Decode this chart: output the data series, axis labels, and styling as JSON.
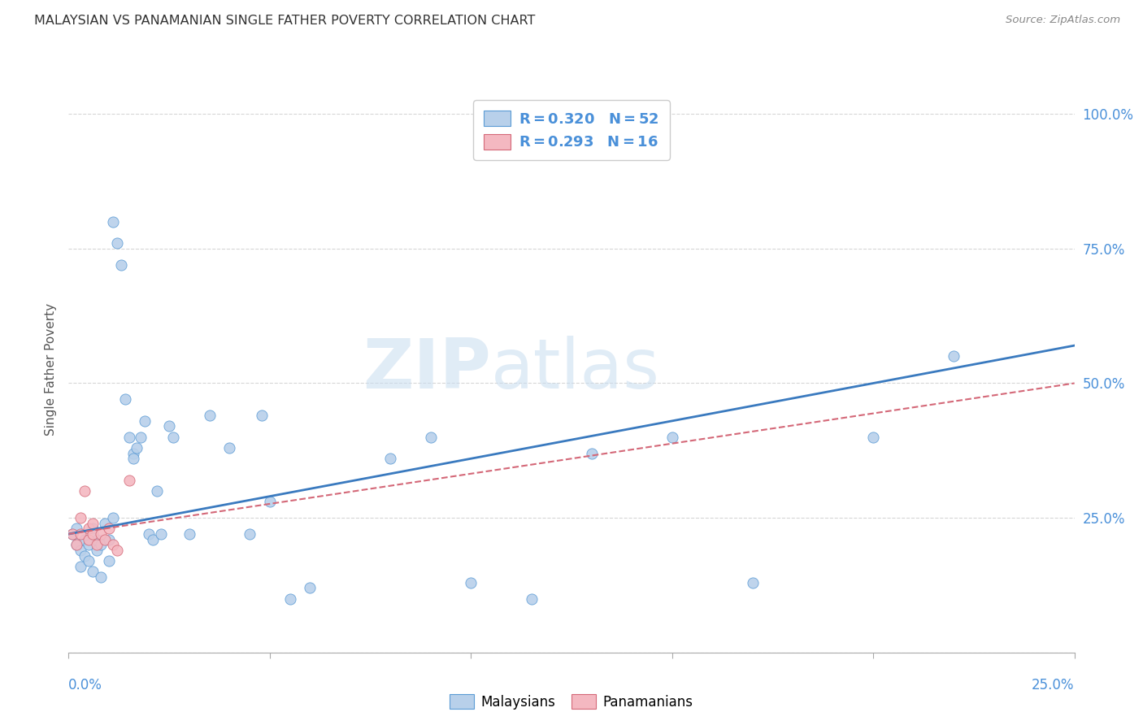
{
  "title": "MALAYSIAN VS PANAMANIAN SINGLE FATHER POVERTY CORRELATION CHART",
  "source": "Source: ZipAtlas.com",
  "ylabel": "Single Father Poverty",
  "xlim": [
    0.0,
    0.25
  ],
  "ylim": [
    0.0,
    1.05
  ],
  "malaysian_R": 0.32,
  "malaysian_N": 52,
  "panamanian_R": 0.293,
  "panamanian_N": 16,
  "malaysian_color": "#b8d0ea",
  "panamanian_color": "#f4b8c1",
  "malaysian_edge_color": "#5b9bd5",
  "panamanian_edge_color": "#d46878",
  "malaysian_line_color": "#3a7abf",
  "panamanian_line_color": "#d46878",
  "malaysian_x": [
    0.001,
    0.002,
    0.002,
    0.003,
    0.003,
    0.004,
    0.004,
    0.005,
    0.005,
    0.006,
    0.006,
    0.007,
    0.007,
    0.008,
    0.008,
    0.009,
    0.01,
    0.01,
    0.011,
    0.011,
    0.012,
    0.013,
    0.014,
    0.015,
    0.016,
    0.016,
    0.017,
    0.018,
    0.019,
    0.02,
    0.021,
    0.022,
    0.023,
    0.025,
    0.026,
    0.03,
    0.035,
    0.04,
    0.045,
    0.048,
    0.05,
    0.055,
    0.06,
    0.08,
    0.09,
    0.1,
    0.115,
    0.13,
    0.15,
    0.17,
    0.2,
    0.22
  ],
  "malaysian_y": [
    0.22,
    0.2,
    0.23,
    0.19,
    0.16,
    0.18,
    0.21,
    0.17,
    0.2,
    0.15,
    0.23,
    0.19,
    0.21,
    0.14,
    0.2,
    0.24,
    0.17,
    0.21,
    0.25,
    0.8,
    0.76,
    0.72,
    0.47,
    0.4,
    0.37,
    0.36,
    0.38,
    0.4,
    0.43,
    0.22,
    0.21,
    0.3,
    0.22,
    0.42,
    0.4,
    0.22,
    0.44,
    0.38,
    0.22,
    0.44,
    0.28,
    0.1,
    0.12,
    0.36,
    0.4,
    0.13,
    0.1,
    0.37,
    0.4,
    0.13,
    0.4,
    0.55
  ],
  "panamanian_x": [
    0.001,
    0.002,
    0.003,
    0.003,
    0.004,
    0.005,
    0.005,
    0.006,
    0.006,
    0.007,
    0.008,
    0.009,
    0.01,
    0.011,
    0.012,
    0.015
  ],
  "panamanian_y": [
    0.22,
    0.2,
    0.22,
    0.25,
    0.3,
    0.21,
    0.23,
    0.24,
    0.22,
    0.2,
    0.22,
    0.21,
    0.23,
    0.2,
    0.19,
    0.32
  ],
  "mal_trend_x0": 0.0,
  "mal_trend_y0": 0.22,
  "mal_trend_x1": 0.25,
  "mal_trend_y1": 0.57,
  "pan_trend_x0": 0.0,
  "pan_trend_y0": 0.22,
  "pan_trend_x1": 0.25,
  "pan_trend_y1": 0.5
}
